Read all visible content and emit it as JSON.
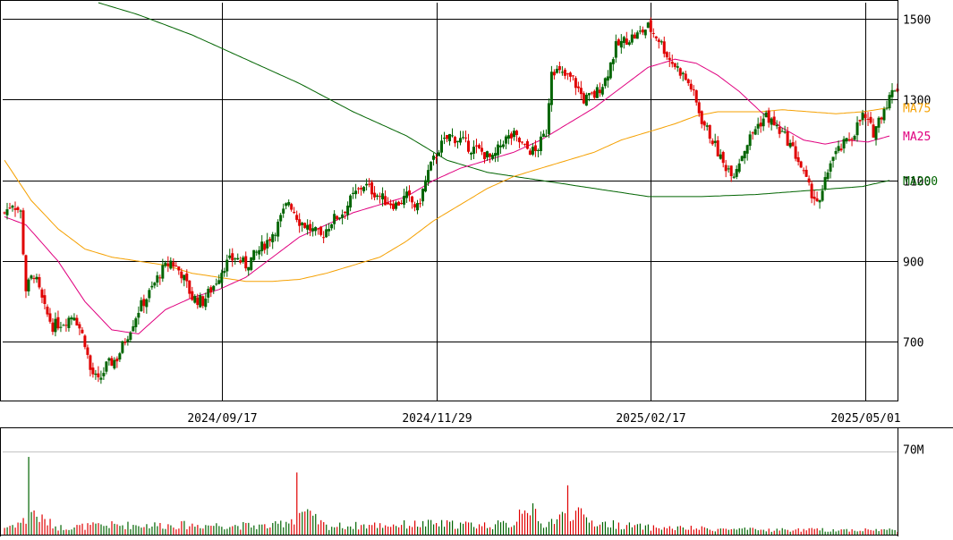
{
  "chart_data": {
    "type": "candlestick",
    "price_axis": {
      "ticks": [
        700,
        900,
        1100,
        1300,
        1500
      ],
      "tick_labels": [
        "700",
        "900",
        "1100",
        "1300",
        "1500"
      ],
      "ylim": [
        555,
        1540
      ],
      "side": "right"
    },
    "date_axis": {
      "labels": [
        "2024/09/17",
        "2024/11/29",
        "2025/02/17",
        "2025/05/01"
      ],
      "label_bar_index": [
        81,
        161,
        241,
        321
      ]
    },
    "volume_axis": {
      "ticks": [
        70
      ],
      "tick_labels": [
        "70M"
      ],
      "ylim": [
        0,
        80
      ],
      "unit": "M"
    },
    "legend": [
      {
        "label": "MA75",
        "color": "#f5a000"
      },
      {
        "label": "MA25",
        "color": "#e0007f"
      },
      {
        "label": "MA200",
        "color": "#006400"
      }
    ],
    "colors": {
      "up": "#006400",
      "down": "#e00000",
      "ma75": "#f5a000",
      "ma25": "#e0007f",
      "ma200": "#006400",
      "grid": "#000000",
      "axis_text": "#000000"
    },
    "ohlc_anchors": [
      [
        0,
        1020
      ],
      [
        3,
        1045
      ],
      [
        6,
        1020
      ],
      [
        8,
        830
      ],
      [
        11,
        870
      ],
      [
        15,
        780
      ],
      [
        18,
        740
      ],
      [
        22,
        750
      ],
      [
        26,
        770
      ],
      [
        30,
        700
      ],
      [
        32,
        630
      ],
      [
        35,
        600
      ],
      [
        38,
        640
      ],
      [
        42,
        660
      ],
      [
        46,
        720
      ],
      [
        50,
        780
      ],
      [
        54,
        820
      ],
      [
        58,
        870
      ],
      [
        62,
        900
      ],
      [
        66,
        870
      ],
      [
        70,
        810
      ],
      [
        74,
        800
      ],
      [
        78,
        840
      ],
      [
        82,
        890
      ],
      [
        86,
        910
      ],
      [
        90,
        890
      ],
      [
        94,
        920
      ],
      [
        98,
        950
      ],
      [
        102,
        990
      ],
      [
        106,
        1050
      ],
      [
        110,
        1000
      ],
      [
        114,
        980
      ],
      [
        118,
        960
      ],
      [
        122,
        1000
      ],
      [
        126,
        1020
      ],
      [
        130,
        1060
      ],
      [
        134,
        1090
      ],
      [
        138,
        1070
      ],
      [
        142,
        1050
      ],
      [
        146,
        1040
      ],
      [
        150,
        1060
      ],
      [
        154,
        1030
      ],
      [
        158,
        1120
      ],
      [
        162,
        1180
      ],
      [
        166,
        1210
      ],
      [
        170,
        1200
      ],
      [
        174,
        1180
      ],
      [
        178,
        1170
      ],
      [
        182,
        1150
      ],
      [
        186,
        1200
      ],
      [
        190,
        1210
      ],
      [
        194,
        1180
      ],
      [
        198,
        1170
      ],
      [
        202,
        1220
      ],
      [
        204,
        1380
      ],
      [
        208,
        1360
      ],
      [
        212,
        1350
      ],
      [
        216,
        1300
      ],
      [
        220,
        1310
      ],
      [
        224,
        1350
      ],
      [
        228,
        1430
      ],
      [
        232,
        1450
      ],
      [
        236,
        1460
      ],
      [
        240,
        1480
      ],
      [
        244,
        1450
      ],
      [
        248,
        1400
      ],
      [
        252,
        1370
      ],
      [
        256,
        1330
      ],
      [
        260,
        1250
      ],
      [
        264,
        1200
      ],
      [
        268,
        1140
      ],
      [
        272,
        1120
      ],
      [
        276,
        1180
      ],
      [
        280,
        1230
      ],
      [
        284,
        1260
      ],
      [
        288,
        1230
      ],
      [
        292,
        1200
      ],
      [
        296,
        1150
      ],
      [
        300,
        1080
      ],
      [
        304,
        1040
      ],
      [
        308,
        1150
      ],
      [
        312,
        1180
      ],
      [
        316,
        1210
      ],
      [
        320,
        1260
      ],
      [
        324,
        1220
      ],
      [
        328,
        1280
      ],
      [
        332,
        1330
      ]
    ],
    "ma25": [
      [
        0,
        1010
      ],
      [
        8,
        990
      ],
      [
        20,
        900
      ],
      [
        30,
        800
      ],
      [
        40,
        730
      ],
      [
        50,
        720
      ],
      [
        60,
        780
      ],
      [
        70,
        810
      ],
      [
        80,
        830
      ],
      [
        90,
        860
      ],
      [
        100,
        910
      ],
      [
        110,
        960
      ],
      [
        120,
        990
      ],
      [
        130,
        1020
      ],
      [
        140,
        1040
      ],
      [
        150,
        1060
      ],
      [
        160,
        1100
      ],
      [
        170,
        1130
      ],
      [
        180,
        1150
      ],
      [
        190,
        1170
      ],
      [
        200,
        1200
      ],
      [
        210,
        1240
      ],
      [
        220,
        1280
      ],
      [
        230,
        1330
      ],
      [
        240,
        1380
      ],
      [
        250,
        1400
      ],
      [
        258,
        1390
      ],
      [
        266,
        1360
      ],
      [
        274,
        1320
      ],
      [
        282,
        1270
      ],
      [
        290,
        1230
      ],
      [
        298,
        1200
      ],
      [
        306,
        1190
      ],
      [
        314,
        1200
      ],
      [
        322,
        1195
      ],
      [
        330,
        1210
      ]
    ],
    "ma75": [
      [
        0,
        1150
      ],
      [
        10,
        1050
      ],
      [
        20,
        980
      ],
      [
        30,
        930
      ],
      [
        40,
        910
      ],
      [
        50,
        900
      ],
      [
        60,
        890
      ],
      [
        70,
        870
      ],
      [
        80,
        860
      ],
      [
        90,
        850
      ],
      [
        100,
        850
      ],
      [
        110,
        855
      ],
      [
        120,
        870
      ],
      [
        130,
        890
      ],
      [
        140,
        910
      ],
      [
        150,
        950
      ],
      [
        160,
        1000
      ],
      [
        170,
        1040
      ],
      [
        180,
        1080
      ],
      [
        190,
        1110
      ],
      [
        200,
        1130
      ],
      [
        210,
        1150
      ],
      [
        220,
        1170
      ],
      [
        230,
        1200
      ],
      [
        240,
        1220
      ],
      [
        250,
        1240
      ],
      [
        258,
        1260
      ],
      [
        266,
        1270
      ],
      [
        274,
        1270
      ],
      [
        282,
        1270
      ],
      [
        290,
        1275
      ],
      [
        300,
        1270
      ],
      [
        310,
        1265
      ],
      [
        320,
        1270
      ],
      [
        330,
        1280
      ]
    ],
    "ma200": [
      [
        30,
        1550
      ],
      [
        50,
        1510
      ],
      [
        70,
        1460
      ],
      [
        90,
        1400
      ],
      [
        110,
        1340
      ],
      [
        130,
        1270
      ],
      [
        150,
        1210
      ],
      [
        165,
        1150
      ],
      [
        180,
        1120
      ],
      [
        200,
        1100
      ],
      [
        220,
        1080
      ],
      [
        240,
        1060
      ],
      [
        260,
        1060
      ],
      [
        280,
        1065
      ],
      [
        300,
        1075
      ],
      [
        320,
        1085
      ],
      [
        330,
        1100
      ]
    ],
    "volume_anchors": [
      [
        0,
        6
      ],
      [
        8,
        12
      ],
      [
        9,
        72
      ],
      [
        10,
        20
      ],
      [
        13,
        14
      ],
      [
        20,
        6
      ],
      [
        40,
        8
      ],
      [
        60,
        8
      ],
      [
        80,
        8
      ],
      [
        100,
        7
      ],
      [
        108,
        14
      ],
      [
        109,
        52
      ],
      [
        110,
        20
      ],
      [
        120,
        7
      ],
      [
        140,
        8
      ],
      [
        160,
        9
      ],
      [
        180,
        8
      ],
      [
        190,
        9
      ],
      [
        194,
        30
      ],
      [
        200,
        8
      ],
      [
        209,
        16
      ],
      [
        210,
        48
      ],
      [
        211,
        20
      ],
      [
        220,
        10
      ],
      [
        240,
        6
      ],
      [
        260,
        5
      ],
      [
        280,
        4
      ],
      [
        300,
        4
      ],
      [
        320,
        4
      ],
      [
        330,
        4
      ]
    ]
  }
}
